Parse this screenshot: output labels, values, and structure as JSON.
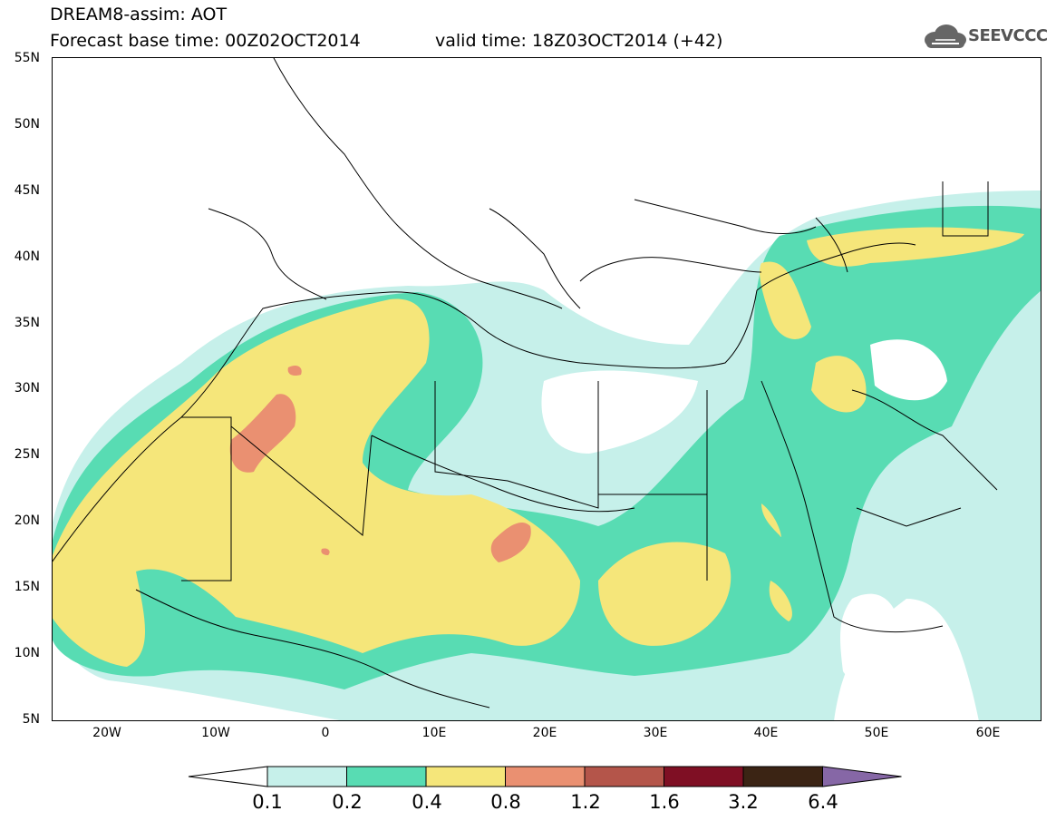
{
  "header": {
    "title": "DREAM8-assim: AOT",
    "base_time": "Forecast base time: 00Z02OCT2014",
    "valid_time": "valid time: 18Z03OCT2014 (+42)"
  },
  "logo": {
    "text": "SEEVCCC",
    "icon": "cloud-icon"
  },
  "map": {
    "lat_labels": [
      "55N",
      "50N",
      "45N",
      "40N",
      "35N",
      "30N",
      "25N",
      "20N",
      "15N",
      "10N",
      "5N"
    ],
    "lon_labels": [
      "20W",
      "10W",
      "0",
      "10E",
      "20E",
      "30E",
      "40E",
      "50E",
      "60E"
    ]
  },
  "colorbar": {
    "colors": [
      "#c6f0ea",
      "#58dcb3",
      "#f5e67a",
      "#ea9071",
      "#b4554a",
      "#7f0f24",
      "#3b2414",
      "#8667a6"
    ],
    "labels": [
      "0.1",
      "0.2",
      "0.4",
      "0.8",
      "1.2",
      "1.6",
      "3.2",
      "6.4"
    ]
  }
}
